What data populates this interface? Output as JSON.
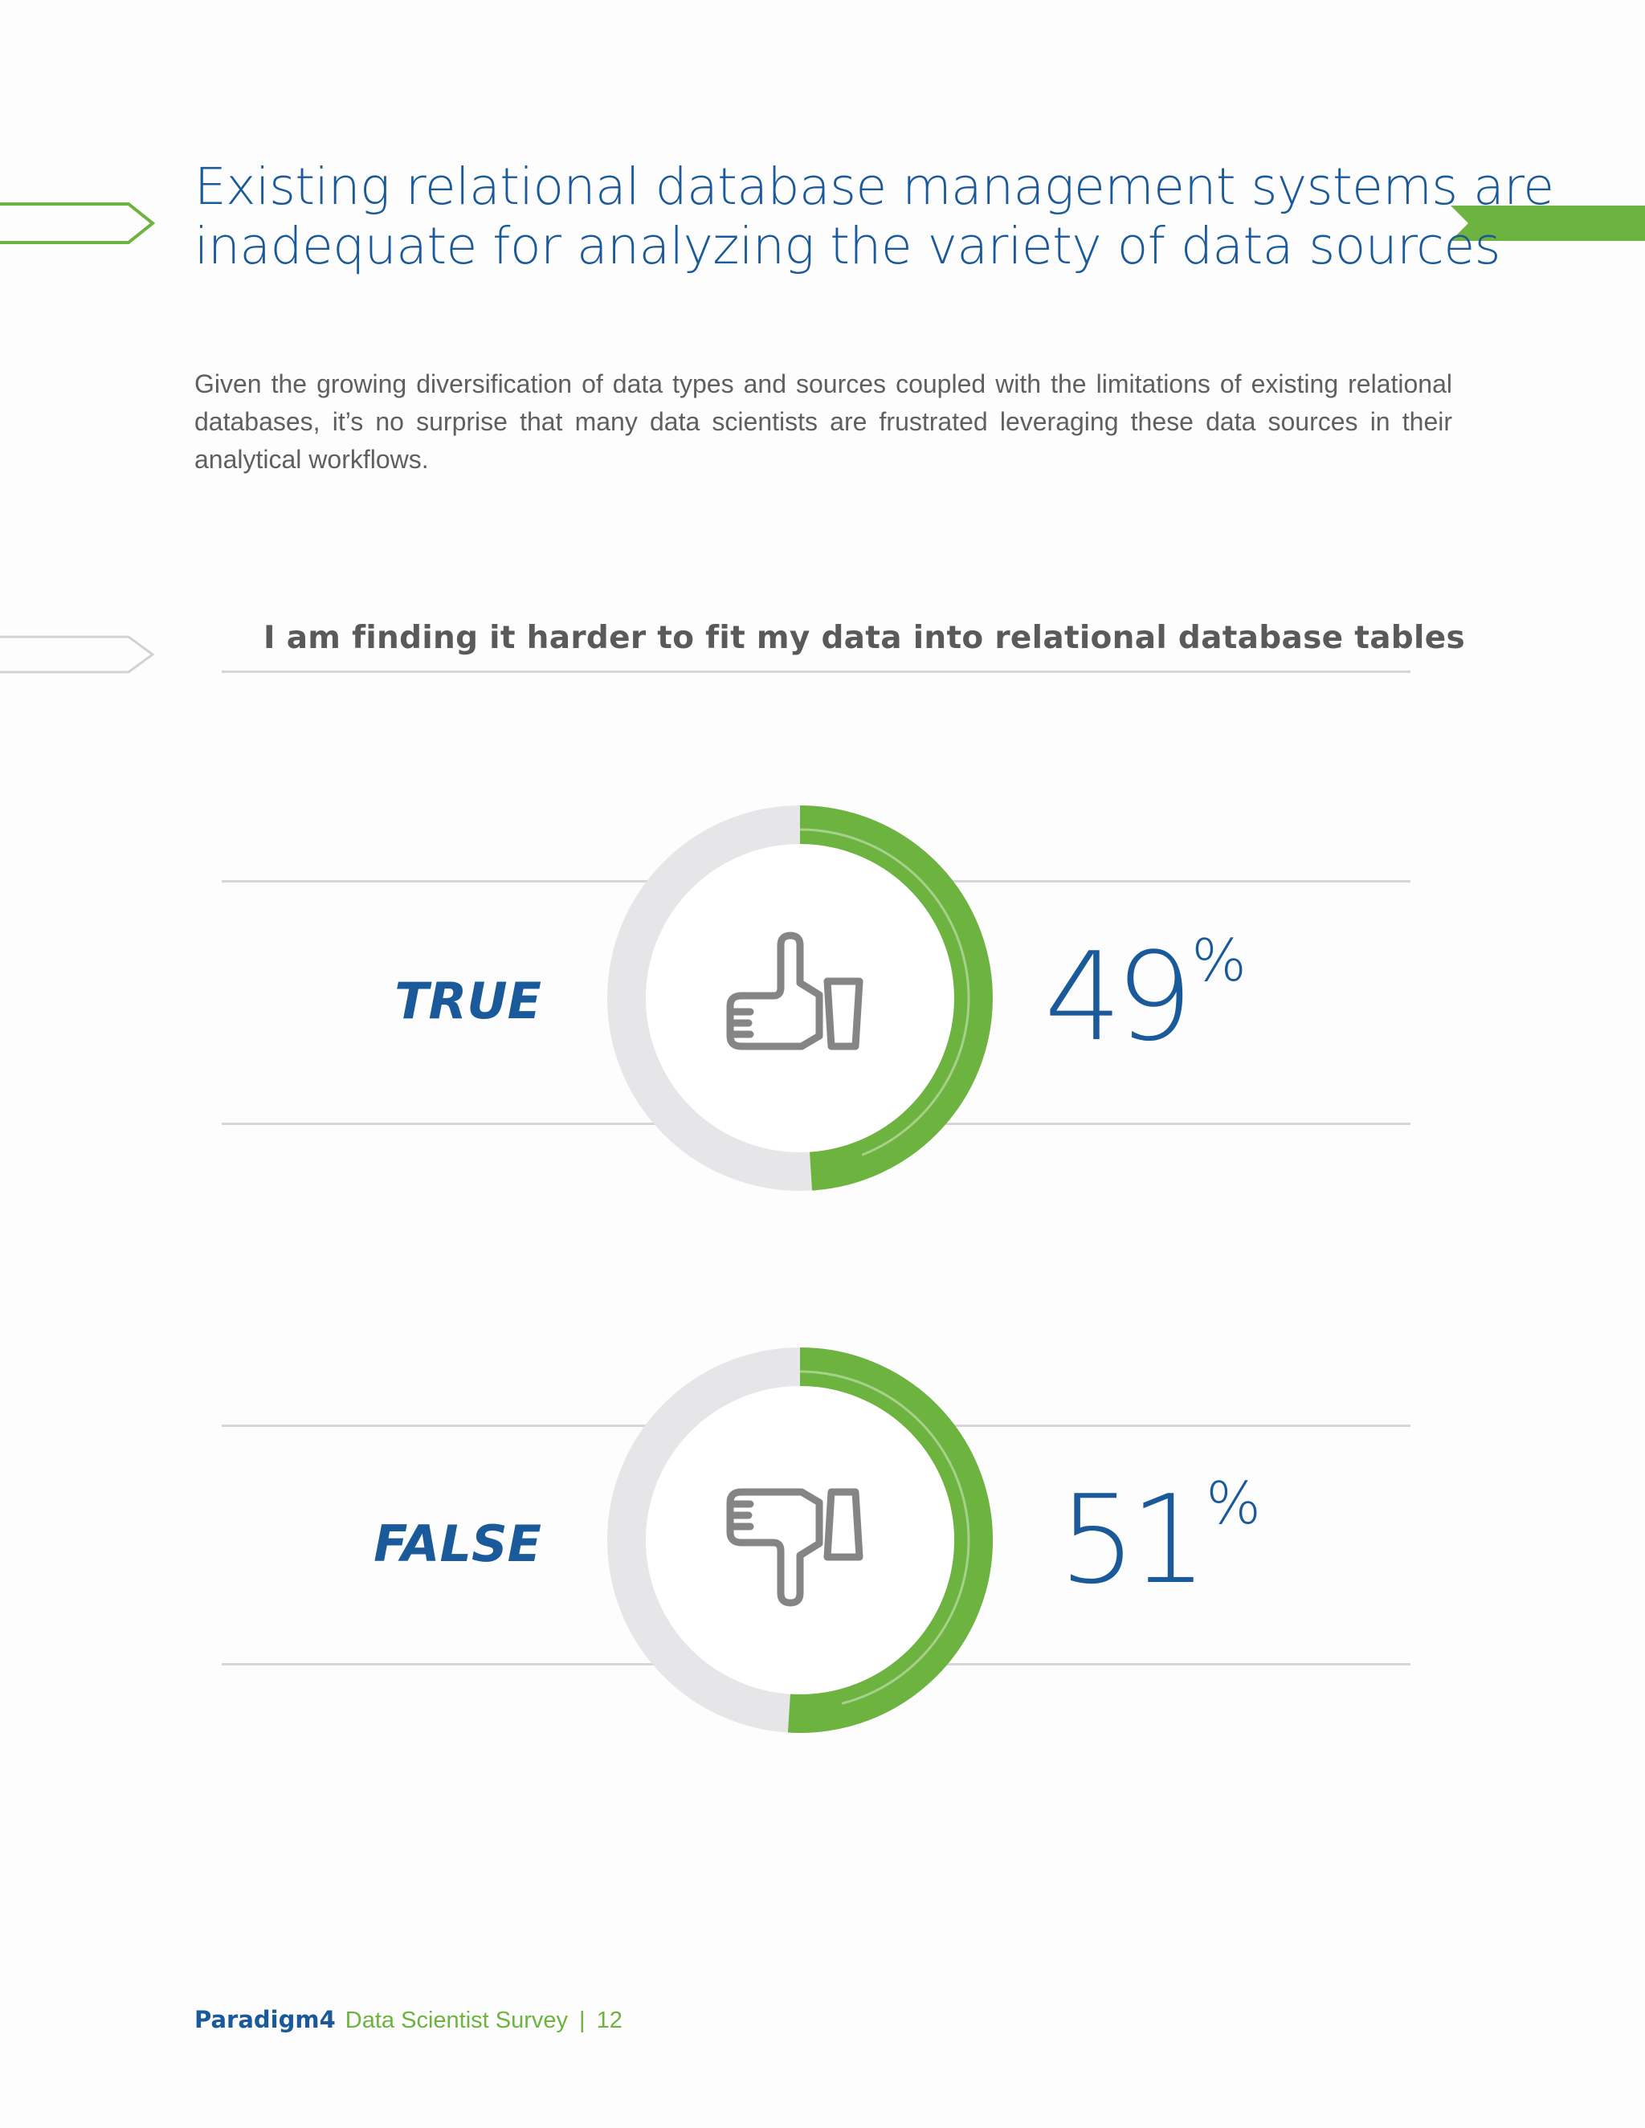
{
  "headline": {
    "line1": "Existing relational database management systems are",
    "line2": "inadequate for analyzing the variety of data sources"
  },
  "intro": "Given the growing diversification of data types and sources coupled with the limitations of existing relational databases, it’s no surprise that many data scientists are frustrated leveraging these data sources in their analytical workflows.",
  "question": "I am finding it harder to fit my data into relational database tables",
  "answers": [
    {
      "label": "TRUE",
      "value": "49",
      "unit": "%",
      "icon": "thumbs-up-icon"
    },
    {
      "label": "FALSE",
      "value": "51",
      "unit": "%",
      "icon": "thumbs-down-icon"
    }
  ],
  "chart_data": {
    "type": "pie",
    "title": "I am finding it harder to fit my data into relational database tables",
    "categories": [
      "TRUE",
      "FALSE"
    ],
    "values": [
      49,
      51
    ],
    "unit": "%"
  },
  "footer": {
    "brand": "Paradigm4",
    "title": "Data Scientist Survey",
    "separator": "|",
    "page": "12"
  },
  "colors": {
    "accent_blue": "#1a5a9a",
    "accent_green": "#6db33f",
    "ring_track": "#e6e6e8",
    "icon_gray": "#858585"
  }
}
